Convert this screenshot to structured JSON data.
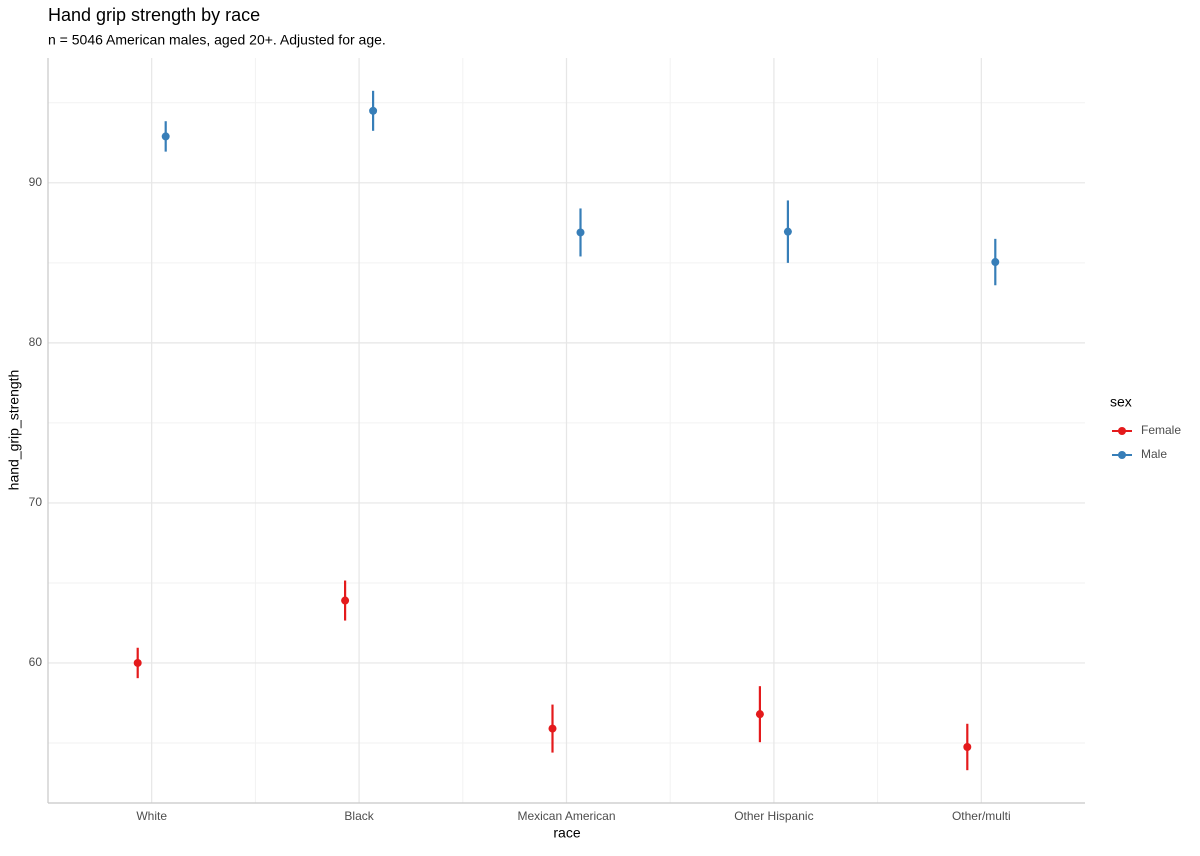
{
  "chart_data": {
    "type": "pointrange",
    "title": "Hand grip strength by race",
    "subtitle": "n = 5046 American males, aged 20+. Adjusted for age.",
    "x_label": "race",
    "y_label": "hand_grip_strength",
    "categories": [
      "White",
      "Black",
      "Mexican American",
      "Other Hispanic",
      "Other/multi"
    ],
    "legend_title": "sex",
    "series": [
      {
        "name": "Female",
        "color": "#e41a1c",
        "values": [
          60.0,
          63.9,
          55.9,
          56.8,
          54.75
        ],
        "lower": [
          59.05,
          62.65,
          54.4,
          55.05,
          53.3
        ],
        "upper": [
          60.95,
          65.15,
          57.4,
          58.55,
          56.2
        ]
      },
      {
        "name": "Male",
        "color": "#377eb8",
        "values": [
          92.9,
          94.5,
          86.9,
          86.95,
          85.05
        ],
        "lower": [
          91.95,
          93.25,
          85.4,
          85.0,
          83.6
        ],
        "upper": [
          93.85,
          95.75,
          88.4,
          88.9,
          86.5
        ]
      }
    ],
    "ylim": [
      51.25,
      97.8
    ],
    "yticks": [
      60,
      70,
      80,
      90
    ],
    "minor_yticks": [
      55,
      65,
      75,
      85,
      95
    ],
    "grid": true
  }
}
